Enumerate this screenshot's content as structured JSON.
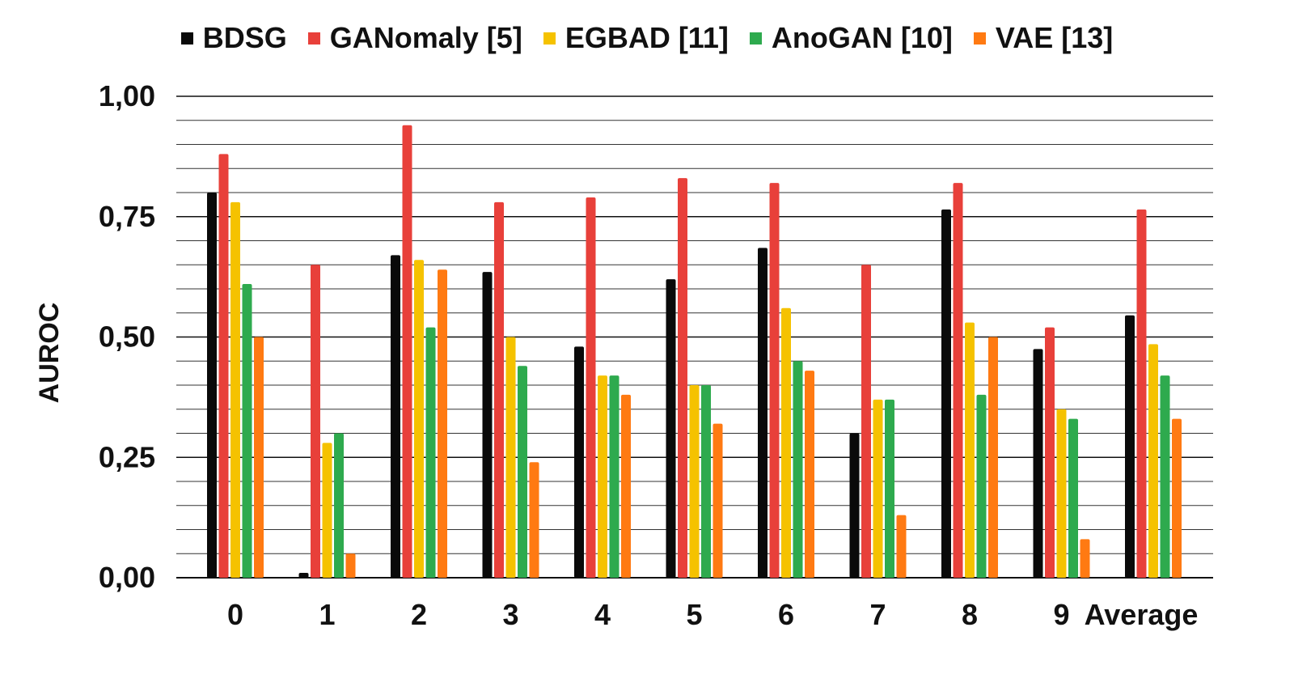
{
  "chart_data": {
    "type": "bar",
    "ylabel": "AUROC",
    "xlabel": "",
    "ylim": [
      0,
      1
    ],
    "yticks": [
      "0,00",
      "0,25",
      "0,50",
      "0,75",
      "1,00"
    ],
    "ytick_values": [
      0,
      0.25,
      0.5,
      0.75,
      1.0
    ],
    "minor_grid_step": 0.05,
    "legend_position": "top",
    "categories": [
      "0",
      "1",
      "2",
      "3",
      "4",
      "5",
      "6",
      "7",
      "8",
      "9",
      "Average"
    ],
    "series": [
      {
        "name": "BDSG",
        "color": "#0a0a0a",
        "values": [
          0.8,
          0.01,
          0.67,
          0.635,
          0.48,
          0.62,
          0.685,
          0.3,
          0.765,
          0.475,
          0.545
        ]
      },
      {
        "name": "GANomaly [5]",
        "color": "#e8403a",
        "values": [
          0.88,
          0.65,
          0.94,
          0.78,
          0.79,
          0.83,
          0.82,
          0.65,
          0.82,
          0.52,
          0.765
        ]
      },
      {
        "name": "EGBAD [11]",
        "color": "#f5c200",
        "values": [
          0.78,
          0.28,
          0.66,
          0.5,
          0.42,
          0.4,
          0.56,
          0.37,
          0.53,
          0.35,
          0.485
        ]
      },
      {
        "name": "AnoGAN [10]",
        "color": "#2eaa4e",
        "values": [
          0.61,
          0.3,
          0.52,
          0.44,
          0.42,
          0.4,
          0.45,
          0.37,
          0.38,
          0.33,
          0.42
        ]
      },
      {
        "name": "VAE [13]",
        "color": "#ff7a12",
        "values": [
          0.5,
          0.05,
          0.64,
          0.24,
          0.38,
          0.32,
          0.43,
          0.13,
          0.5,
          0.08,
          0.33
        ]
      }
    ]
  }
}
